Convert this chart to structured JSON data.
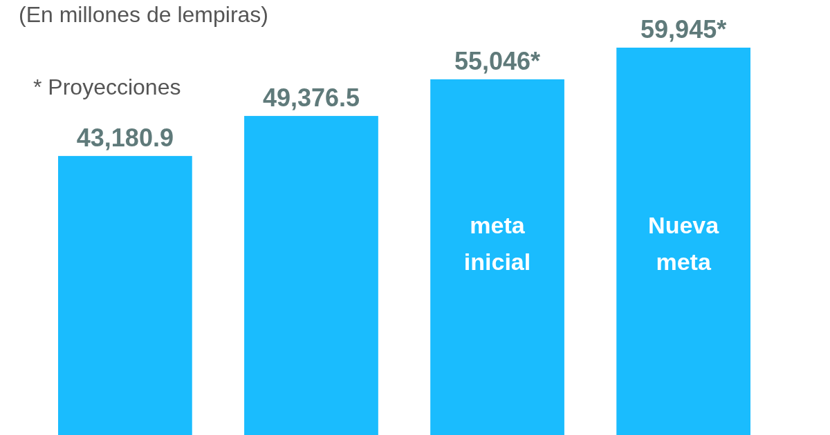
{
  "chart_data": {
    "type": "bar",
    "subtitle": "(En millones de lempiras)",
    "annotations": [
      "* Proyecciones"
    ],
    "categories": [
      null,
      null,
      "meta inicial",
      "Nueva meta"
    ],
    "values": [
      43180.9,
      49376.5,
      55046,
      59945
    ],
    "value_labels": [
      "43,180.9",
      "49,376.5",
      "55,046*",
      "59,945*"
    ],
    "color": "#1abcfe"
  }
}
